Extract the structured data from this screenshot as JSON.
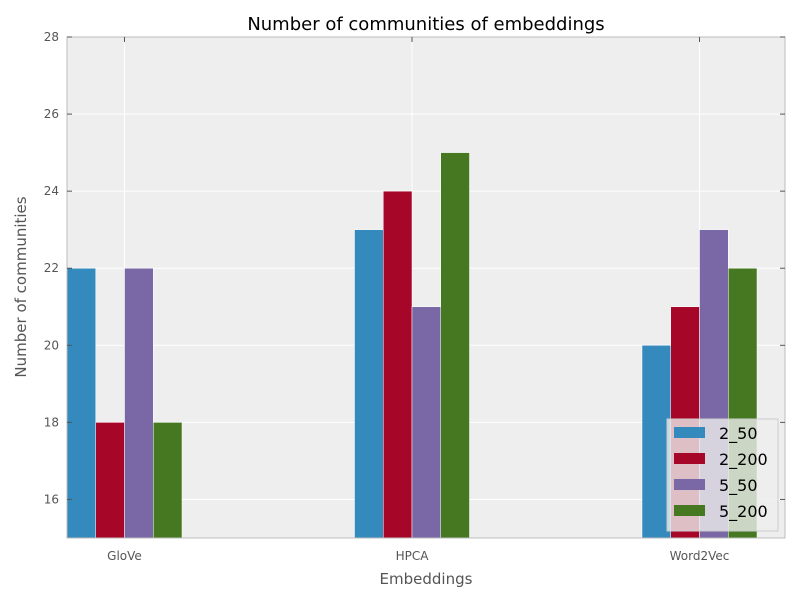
{
  "chart_data": {
    "type": "bar",
    "title": "Number of communities of embeddings",
    "xlabel": "Embeddings",
    "ylabel": "Number of communities",
    "categories": [
      "GloVe",
      "HPCA",
      "Word2Vec"
    ],
    "ylim": [
      15,
      28
    ],
    "yticks": [
      16,
      18,
      20,
      22,
      24,
      26,
      28
    ],
    "grid": true,
    "legend_position": "bottom-right",
    "series": [
      {
        "name": "2_50",
        "values": [
          22,
          23,
          20
        ],
        "color": "#348abd"
      },
      {
        "name": "2_200",
        "values": [
          18,
          24,
          21
        ],
        "color": "#a60628"
      },
      {
        "name": "5_50",
        "values": [
          22,
          21,
          23
        ],
        "color": "#7a68a6"
      },
      {
        "name": "5_200",
        "values": [
          18,
          25,
          22
        ],
        "color": "#467821"
      }
    ]
  }
}
